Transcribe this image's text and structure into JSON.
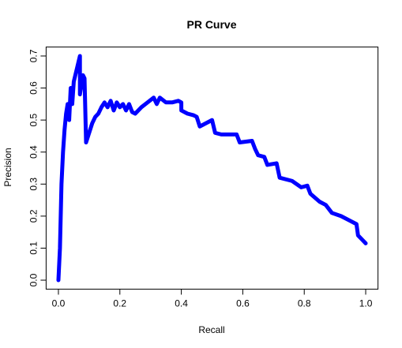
{
  "chart_data": {
    "type": "line",
    "title": "PR Curve",
    "xlabel": "Recall",
    "ylabel": "Precision",
    "x": [
      0,
      0.005,
      0.01,
      0.015,
      0.02,
      0.025,
      0.03,
      0.035,
      0.04,
      0.045,
      0.05,
      0.06,
      0.065,
      0.07,
      0.07,
      0.08,
      0.085,
      0.09,
      0.1,
      0.11,
      0.12,
      0.13,
      0.14,
      0.15,
      0.16,
      0.17,
      0.18,
      0.19,
      0.2,
      0.21,
      0.22,
      0.23,
      0.24,
      0.25,
      0.27,
      0.29,
      0.31,
      0.32,
      0.33,
      0.35,
      0.37,
      0.39,
      0.4,
      0.4,
      0.42,
      0.44,
      0.45,
      0.46,
      0.5,
      0.51,
      0.53,
      0.58,
      0.59,
      0.63,
      0.64,
      0.65,
      0.67,
      0.68,
      0.71,
      0.72,
      0.76,
      0.79,
      0.81,
      0.82,
      0.85,
      0.87,
      0.89,
      0.92,
      0.95,
      0.97,
      0.975,
      0.99,
      1.0
    ],
    "series": [
      {
        "name": "PR",
        "color": "#0000ff",
        "values": [
          0,
          0.1,
          0.3,
          0.4,
          0.47,
          0.52,
          0.55,
          0.5,
          0.6,
          0.55,
          0.62,
          0.66,
          0.68,
          0.7,
          0.58,
          0.64,
          0.63,
          0.43,
          0.46,
          0.49,
          0.51,
          0.52,
          0.54,
          0.555,
          0.54,
          0.56,
          0.53,
          0.555,
          0.54,
          0.55,
          0.53,
          0.55,
          0.525,
          0.52,
          0.54,
          0.555,
          0.57,
          0.55,
          0.57,
          0.555,
          0.555,
          0.56,
          0.555,
          0.53,
          0.52,
          0.515,
          0.51,
          0.48,
          0.5,
          0.46,
          0.455,
          0.455,
          0.43,
          0.435,
          0.41,
          0.39,
          0.385,
          0.36,
          0.365,
          0.32,
          0.31,
          0.29,
          0.295,
          0.27,
          0.245,
          0.235,
          0.21,
          0.2,
          0.185,
          0.175,
          0.14,
          0.125,
          0.115
        ]
      }
    ],
    "xlim": [
      -0.04,
      1.04
    ],
    "ylim": [
      -0.028,
      0.728
    ],
    "xticks": [
      {
        "value": 0,
        "label": "0.0"
      },
      0.2,
      0.4,
      0.6,
      0.8,
      {
        "value": 1,
        "label": "1.0"
      }
    ],
    "yticks": [
      {
        "value": 0,
        "label": "0.0"
      },
      0.1,
      0.2,
      0.3,
      0.4,
      0.5,
      0.6,
      0.7
    ]
  }
}
